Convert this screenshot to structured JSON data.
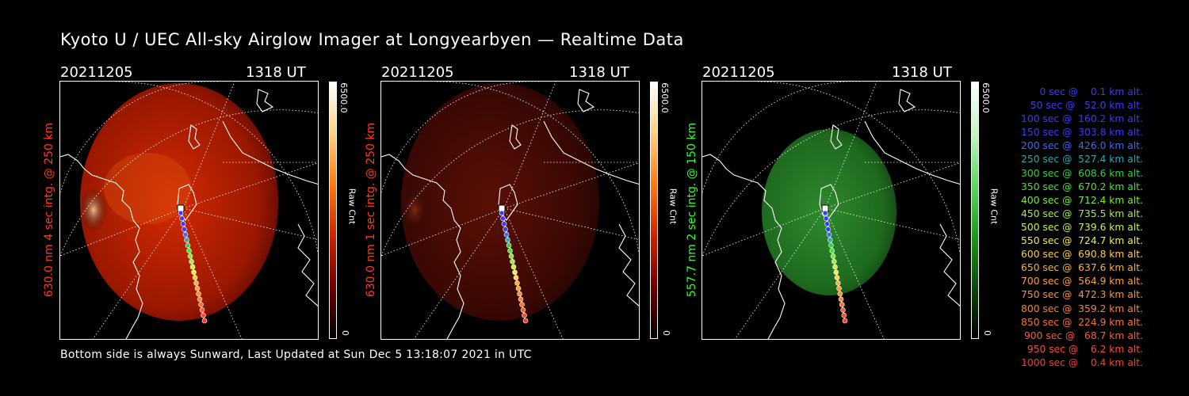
{
  "title": "Kyoto U / UEC All-sky Airglow Imager at Longyearbyen — Realtime Data",
  "footer": "Bottom side is always Sunward, Last Updated at Sun Dec  5 13:18:07 2021 in UTC",
  "colors": {
    "red_label": "#ff3b1a",
    "green_label": "#30ff30"
  },
  "panels": [
    {
      "date": "20211205",
      "time": "1318 UT",
      "side_label": "630.0 nm 4 sec intg. @ 250 km",
      "colorbar_max": "6500.0",
      "colorbar_min": "0",
      "colorbar_unit": "Raw Cnt",
      "colorbar_gradient": [
        "#000000",
        "#6e0000",
        "#d02200",
        "#ff7a10",
        "#ffd080",
        "#ffffff"
      ],
      "label_color": "#ff3b1a"
    },
    {
      "date": "20211205",
      "time": "1318 UT",
      "side_label": "630.0 nm 1 sec intg. @ 250 km",
      "colorbar_max": "6500.0",
      "colorbar_min": "0",
      "colorbar_unit": "Raw Cnt",
      "colorbar_gradient": [
        "#000000",
        "#6e0000",
        "#d02200",
        "#ff7a10",
        "#ffd080",
        "#ffffff"
      ],
      "label_color": "#ff3b1a"
    },
    {
      "date": "20211205",
      "time": "1318 UT",
      "side_label": "557.7 nm 2 sec intg. @ 150 km",
      "colorbar_max": "6500.0",
      "colorbar_min": "0",
      "colorbar_unit": "Raw Cnt",
      "colorbar_gradient": [
        "#000000",
        "#0a4a0a",
        "#1e9a1e",
        "#5ed85e",
        "#c0f5c0",
        "#ffffff"
      ],
      "label_color": "#30ff30"
    }
  ],
  "chart_data": {
    "type": "table",
    "title": "",
    "columns": [
      "time_sec",
      "altitude_km"
    ],
    "rows": [
      {
        "text": "   0 sec @    0.1 km alt.",
        "time_sec": 0,
        "altitude_km": 0.1,
        "color": "#3a3aff"
      },
      {
        "text": "  50 sec @   52.0 km alt.",
        "time_sec": 50,
        "altitude_km": 52.0,
        "color": "#3a3aff"
      },
      {
        "text": " 100 sec @  160.2 km alt.",
        "time_sec": 100,
        "altitude_km": 160.2,
        "color": "#3a3aff"
      },
      {
        "text": " 150 sec @  303.8 km alt.",
        "time_sec": 150,
        "altitude_km": 303.8,
        "color": "#3a3aff"
      },
      {
        "text": " 200 sec @  426.0 km alt.",
        "time_sec": 200,
        "altitude_km": 426.0,
        "color": "#3a6aff"
      },
      {
        "text": " 250 sec @  527.4 km alt.",
        "time_sec": 250,
        "altitude_km": 527.4,
        "color": "#30a8b0"
      },
      {
        "text": " 300 sec @  608.6 km alt.",
        "time_sec": 300,
        "altitude_km": 608.6,
        "color": "#30d040"
      },
      {
        "text": " 350 sec @  670.2 km alt.",
        "time_sec": 350,
        "altitude_km": 670.2,
        "color": "#50e030"
      },
      {
        "text": " 400 sec @  712.4 km alt.",
        "time_sec": 400,
        "altitude_km": 712.4,
        "color": "#70f030"
      },
      {
        "text": " 450 sec @  735.5 km alt.",
        "time_sec": 450,
        "altitude_km": 735.5,
        "color": "#a0f040"
      },
      {
        "text": " 500 sec @  739.6 km alt.",
        "time_sec": 500,
        "altitude_km": 739.6,
        "color": "#d0f040"
      },
      {
        "text": " 550 sec @  724.7 km alt.",
        "time_sec": 550,
        "altitude_km": 724.7,
        "color": "#f0f040"
      },
      {
        "text": " 600 sec @  690.8 km alt.",
        "time_sec": 600,
        "altitude_km": 690.8,
        "color": "#ffd040"
      },
      {
        "text": " 650 sec @  637.6 km alt.",
        "time_sec": 650,
        "altitude_km": 637.6,
        "color": "#ffb030"
      },
      {
        "text": " 700 sec @  564.9 km alt.",
        "time_sec": 700,
        "altitude_km": 564.9,
        "color": "#ffa030"
      },
      {
        "text": " 750 sec @  472.3 km alt.",
        "time_sec": 750,
        "altitude_km": 472.3,
        "color": "#ff9030"
      },
      {
        "text": " 800 sec @  359.2 km alt.",
        "time_sec": 800,
        "altitude_km": 359.2,
        "color": "#ff8030"
      },
      {
        "text": " 850 sec @  224.9 km alt.",
        "time_sec": 850,
        "altitude_km": 224.9,
        "color": "#ff7030"
      },
      {
        "text": " 900 sec @   68.7 km alt.",
        "time_sec": 900,
        "altitude_km": 68.7,
        "color": "#ff5a30"
      },
      {
        "text": " 950 sec @    6.2 km alt.",
        "time_sec": 950,
        "altitude_km": 6.2,
        "color": "#ff4a30"
      },
      {
        "text": "1000 sec @    0.4 km alt.",
        "time_sec": 1000,
        "altitude_km": 0.4,
        "color": "#ff3a30"
      }
    ]
  }
}
